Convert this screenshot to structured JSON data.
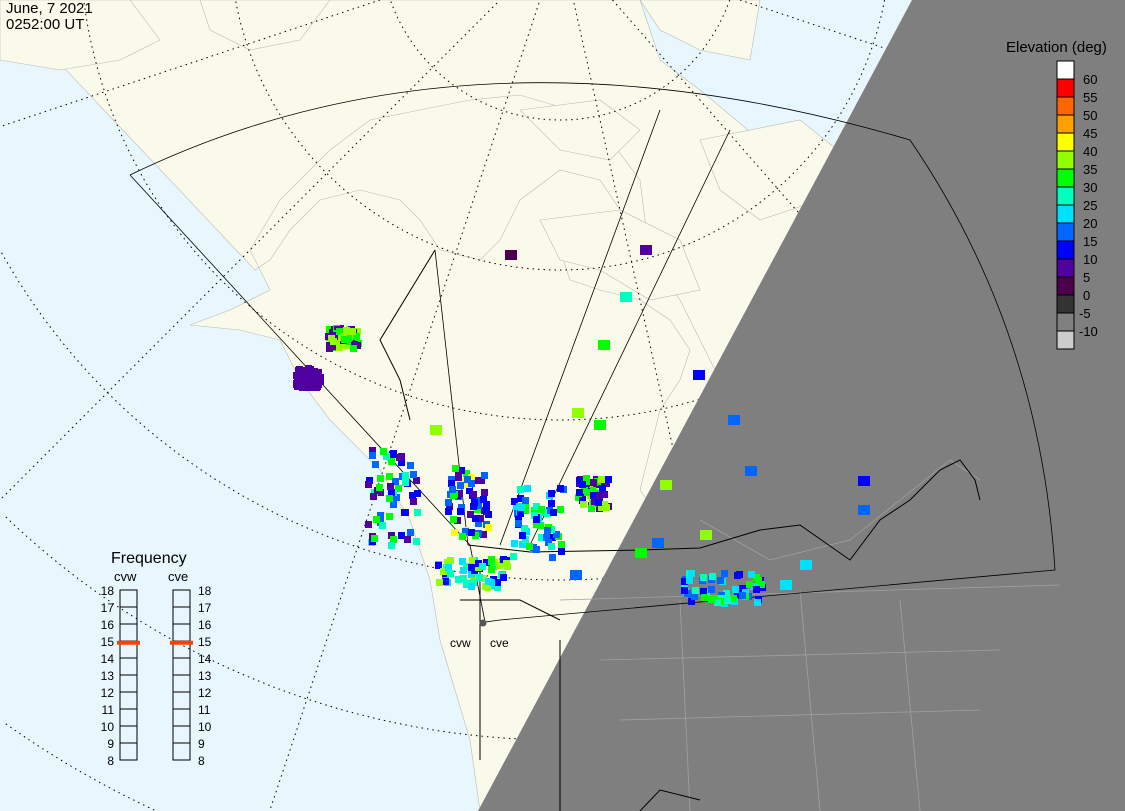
{
  "header": {
    "date": "June, 7 2021",
    "time": "0252:00 UT"
  },
  "radars": [
    {
      "name": "cvw",
      "frequency_mhz": 14.9
    },
    {
      "name": "cve",
      "frequency_mhz": 14.9
    }
  ],
  "frequency_panel": {
    "title": "Frequency",
    "ticks": [
      "18",
      "17",
      "16",
      "15",
      "14",
      "13",
      "12",
      "11",
      "10",
      "9",
      "8"
    ],
    "marker_color": "#ff4000"
  },
  "legend": {
    "title": "Elevation (deg)",
    "colors": [
      "#ffffff",
      "#ff0000",
      "#ff6600",
      "#ffa000",
      "#ffff00",
      "#90ff00",
      "#00ff00",
      "#00ffc0",
      "#00e0ff",
      "#0066ff",
      "#0000ff",
      "#5000a0",
      "#4a004a",
      "#333333",
      "#808080",
      "#cccccc"
    ],
    "labels": [
      "60",
      "55",
      "50",
      "45",
      "40",
      "35",
      "30",
      "25",
      "20",
      "15",
      "10",
      "5",
      "0",
      "-5",
      "-10"
    ]
  },
  "colors": {
    "ocean": "#e8f6fd",
    "land": "#fafaeb",
    "night": "#7f7f7f"
  }
}
